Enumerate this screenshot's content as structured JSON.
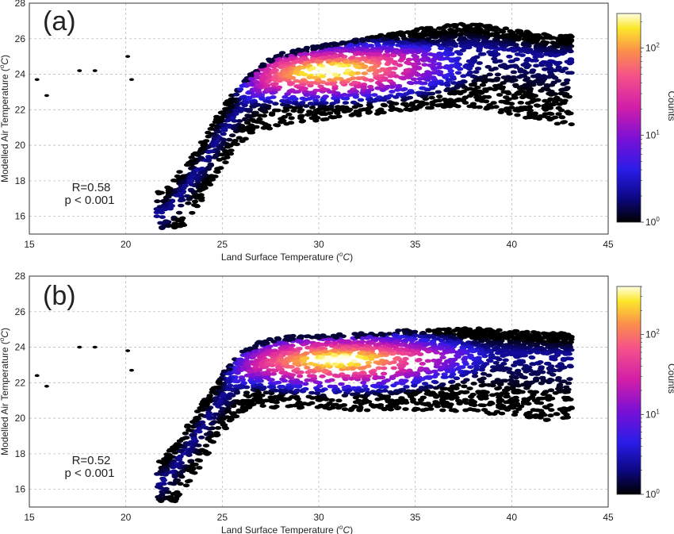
{
  "chart_data": [
    {
      "panel_label": "(a)",
      "type": "heatmap",
      "subtype": "hexbin density scatter",
      "xlabel": "Land Surface Temperature (",
      "xlabel_unit": "oC",
      "ylabel": "Modelled Air Temperature (",
      "ylabel_unit": "oC",
      "xlim": [
        15,
        45
      ],
      "ylim": [
        15,
        28
      ],
      "xticks": [
        "15",
        "20",
        "25",
        "30",
        "35",
        "40",
        "45"
      ],
      "yticks": [
        "16",
        "18",
        "20",
        "22",
        "24",
        "26",
        "28"
      ],
      "grid": true,
      "annotation": [
        "R=0.58",
        "p < 0.001"
      ],
      "colorbar": {
        "label": "Counts",
        "scale": "log",
        "colormap": "plasma-like (black-blue-magenta-orange-yellow)",
        "ticks": [
          "10",
          "10",
          "10"
        ],
        "tick_exponents": [
          "0",
          "1",
          "2"
        ],
        "range": [
          1,
          250
        ]
      },
      "density_ridge": [
        {
          "x": 22,
          "y": 16.2
        },
        {
          "x": 23,
          "y": 17.5
        },
        {
          "x": 24,
          "y": 19.0
        },
        {
          "x": 25,
          "y": 20.8
        },
        {
          "x": 26,
          "y": 22.2
        },
        {
          "x": 27,
          "y": 23.2
        },
        {
          "x": 28,
          "y": 23.8
        },
        {
          "x": 30,
          "y": 24.2
        },
        {
          "x": 32,
          "y": 24.6
        },
        {
          "x": 34,
          "y": 25.0
        },
        {
          "x": 36,
          "y": 25.4
        },
        {
          "x": 38,
          "y": 25.6
        },
        {
          "x": 40,
          "y": 25.3
        },
        {
          "x": 42,
          "y": 25.0
        }
      ],
      "outliers": [
        {
          "x": 15.4,
          "y": 23.7
        },
        {
          "x": 15.9,
          "y": 22.8
        },
        {
          "x": 17.6,
          "y": 24.2
        },
        {
          "x": 18.4,
          "y": 24.2
        },
        {
          "x": 20.1,
          "y": 25.0
        },
        {
          "x": 20.3,
          "y": 23.7
        }
      ],
      "peak": {
        "x": 30.5,
        "y": 24.2
      }
    },
    {
      "panel_label": "(b)",
      "type": "heatmap",
      "subtype": "hexbin density scatter",
      "xlabel": "Land Surface Temperature (",
      "xlabel_unit": "oC",
      "ylabel": "Modelled Air Temperature (",
      "ylabel_unit": "oC",
      "xlim": [
        15,
        45
      ],
      "ylim": [
        15,
        28
      ],
      "xticks": [
        "15",
        "20",
        "25",
        "30",
        "35",
        "40",
        "45"
      ],
      "yticks": [
        "16",
        "18",
        "20",
        "22",
        "24",
        "26",
        "28"
      ],
      "grid": true,
      "annotation": [
        "R=0.52",
        "p < 0.001"
      ],
      "colorbar": {
        "label": "Counts",
        "scale": "log",
        "colormap": "plasma-like (black-blue-magenta-orange-yellow)",
        "ticks": [
          "10",
          "10",
          "10"
        ],
        "tick_exponents": [
          "0",
          "1",
          "2"
        ],
        "range": [
          1,
          400
        ]
      },
      "density_ridge": [
        {
          "x": 22,
          "y": 16.5
        },
        {
          "x": 23,
          "y": 18.0
        },
        {
          "x": 24,
          "y": 19.6
        },
        {
          "x": 25,
          "y": 21.2
        },
        {
          "x": 26,
          "y": 22.4
        },
        {
          "x": 27,
          "y": 23.0
        },
        {
          "x": 28,
          "y": 23.2
        },
        {
          "x": 30,
          "y": 23.3
        },
        {
          "x": 32,
          "y": 23.4
        },
        {
          "x": 34,
          "y": 23.6
        },
        {
          "x": 36,
          "y": 23.7
        },
        {
          "x": 38,
          "y": 23.8
        },
        {
          "x": 40,
          "y": 23.7
        },
        {
          "x": 42,
          "y": 23.6
        }
      ],
      "outliers": [
        {
          "x": 15.4,
          "y": 22.4
        },
        {
          "x": 15.9,
          "y": 21.8
        },
        {
          "x": 17.6,
          "y": 24.0
        },
        {
          "x": 18.4,
          "y": 24.0
        },
        {
          "x": 20.1,
          "y": 23.8
        },
        {
          "x": 20.3,
          "y": 22.7
        }
      ],
      "peak": {
        "x": 31.0,
        "y": 23.3
      }
    }
  ]
}
